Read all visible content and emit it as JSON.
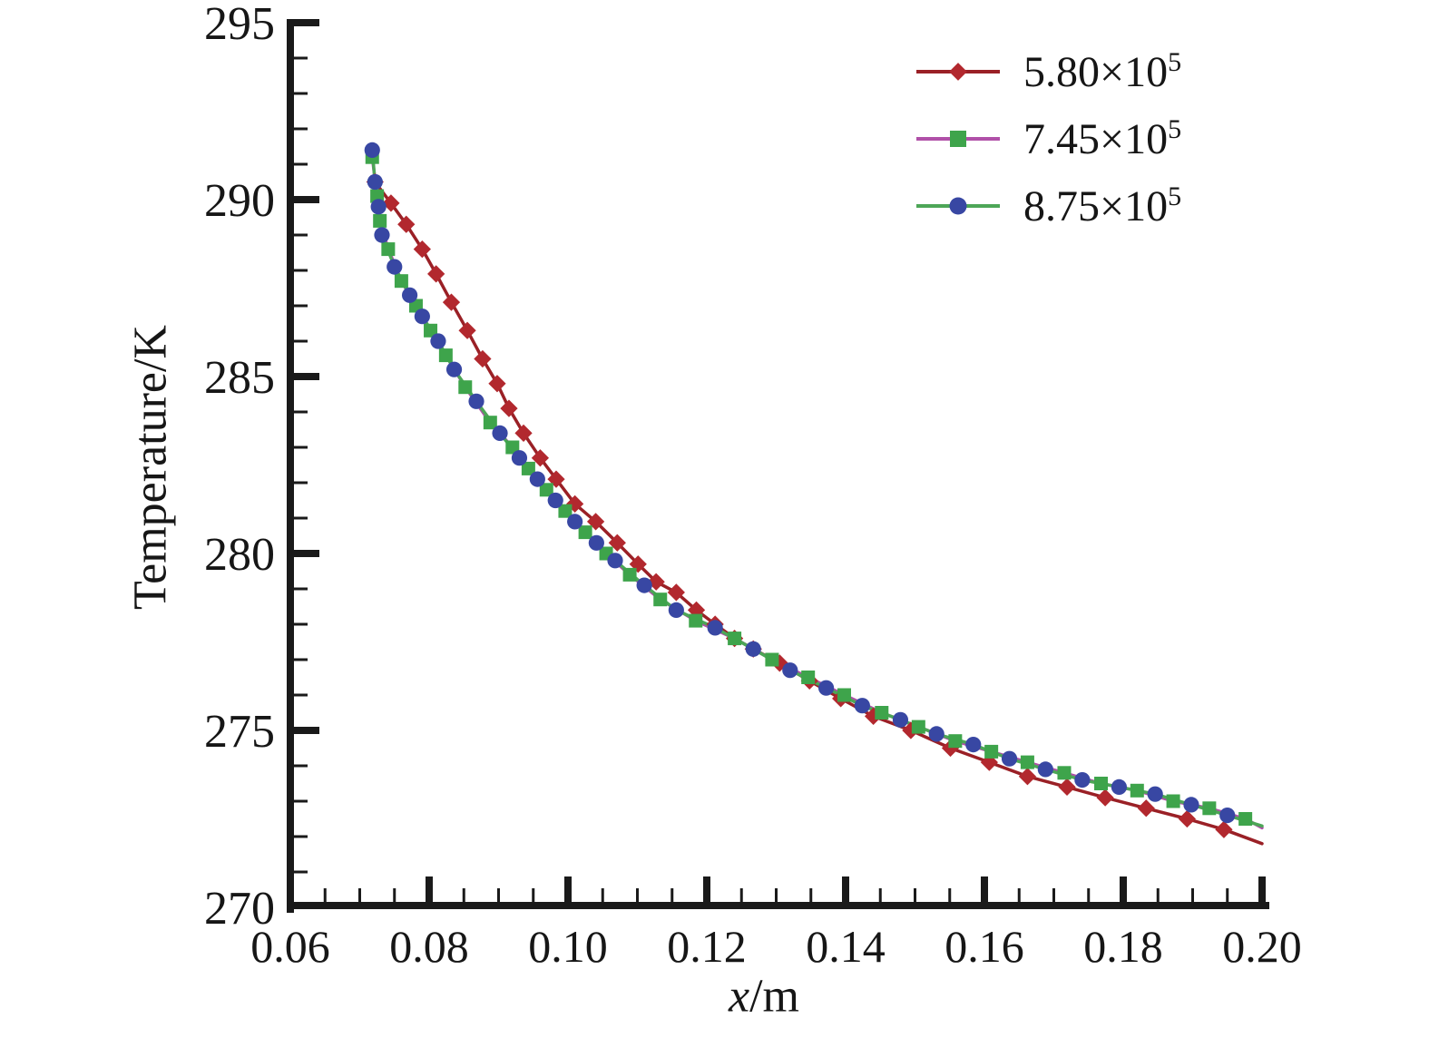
{
  "chart_data": {
    "type": "line",
    "title": "",
    "xlabel_italic": "x",
    "xlabel_rest": "/m",
    "ylabel": "Temperature/K",
    "xlim": [
      0.06,
      0.2
    ],
    "ylim": [
      270,
      295
    ],
    "x_major_ticks": [
      0.06,
      0.08,
      0.1,
      0.12,
      0.14,
      0.16,
      0.18,
      0.2
    ],
    "x_tick_labels": [
      "0.06",
      "0.08",
      "0.10",
      "0.12",
      "0.14",
      "0.16",
      "0.18",
      "0.20"
    ],
    "x_minor_step": 0.005,
    "y_major_ticks": [
      270,
      275,
      280,
      285,
      290,
      295
    ],
    "y_tick_labels": [
      "270",
      "275",
      "280",
      "285",
      "290",
      "295"
    ],
    "y_minor_step": 1,
    "grid": false,
    "legend_position": "top-right",
    "axis_color": "#1a1a1a",
    "text_color": "#161616",
    "series": [
      {
        "name": "5.80×10^5",
        "label_base": "5.80×10",
        "label_exp": "5",
        "marker": "diamond",
        "line_color": "#9a2026",
        "marker_color": "#b2282e",
        "points": [
          [
            0.0722,
            290.5
          ],
          [
            0.0745,
            289.9
          ],
          [
            0.0767,
            289.3
          ],
          [
            0.079,
            288.6
          ],
          [
            0.081,
            287.9
          ],
          [
            0.0832,
            287.1
          ],
          [
            0.0855,
            286.3
          ],
          [
            0.0877,
            285.5
          ],
          [
            0.0898,
            284.8
          ],
          [
            0.0915,
            284.1
          ],
          [
            0.0936,
            283.4
          ],
          [
            0.096,
            282.7
          ],
          [
            0.0983,
            282.1
          ],
          [
            0.101,
            281.4
          ],
          [
            0.104,
            280.9
          ],
          [
            0.1071,
            280.3
          ],
          [
            0.1101,
            279.7
          ],
          [
            0.1127,
            279.2
          ],
          [
            0.1156,
            278.9
          ],
          [
            0.1185,
            278.4
          ],
          [
            0.1212,
            278.0
          ],
          [
            0.124,
            277.6
          ],
          [
            0.1267,
            277.3
          ],
          [
            0.1305,
            276.9
          ],
          [
            0.1348,
            276.4
          ],
          [
            0.1393,
            275.9
          ],
          [
            0.144,
            275.4
          ],
          [
            0.1494,
            275.0
          ],
          [
            0.1551,
            274.5
          ],
          [
            0.1607,
            274.1
          ],
          [
            0.1662,
            273.7
          ],
          [
            0.1719,
            273.4
          ],
          [
            0.1774,
            273.1
          ],
          [
            0.1833,
            272.8
          ],
          [
            0.1892,
            272.5
          ],
          [
            0.1945,
            272.2
          ]
        ],
        "line_end": [
          0.2,
          271.8
        ]
      },
      {
        "name": "7.45×10^5",
        "label_base": "7.45×10",
        "label_exp": "5",
        "marker": "square",
        "line_color": "#b050a8",
        "marker_color": "#3ea44b",
        "points": [
          [
            0.0718,
            291.2
          ],
          [
            0.0725,
            290.1
          ],
          [
            0.0729,
            289.4
          ],
          [
            0.0741,
            288.6
          ],
          [
            0.076,
            287.7
          ],
          [
            0.0781,
            287.0
          ],
          [
            0.0802,
            286.3
          ],
          [
            0.0824,
            285.6
          ],
          [
            0.0852,
            284.7
          ],
          [
            0.0888,
            283.7
          ],
          [
            0.092,
            283.0
          ],
          [
            0.0943,
            282.4
          ],
          [
            0.0969,
            281.8
          ],
          [
            0.0996,
            281.2
          ],
          [
            0.1025,
            280.6
          ],
          [
            0.1055,
            280.0
          ],
          [
            0.1089,
            279.4
          ],
          [
            0.1133,
            278.7
          ],
          [
            0.1184,
            278.1
          ],
          [
            0.124,
            277.6
          ],
          [
            0.1294,
            277.0
          ],
          [
            0.1346,
            276.5
          ],
          [
            0.1398,
            276.0
          ],
          [
            0.1452,
            275.5
          ],
          [
            0.1505,
            275.1
          ],
          [
            0.1558,
            274.7
          ],
          [
            0.161,
            274.4
          ],
          [
            0.1662,
            274.1
          ],
          [
            0.1715,
            273.8
          ],
          [
            0.1768,
            273.5
          ],
          [
            0.182,
            273.3
          ],
          [
            0.1872,
            273.0
          ],
          [
            0.1924,
            272.8
          ],
          [
            0.1976,
            272.5
          ]
        ],
        "line_end": [
          0.2,
          272.25
        ]
      },
      {
        "name": "8.75×10^5",
        "label_base": "8.75×10",
        "label_exp": "5",
        "marker": "circle",
        "line_color": "#4da657",
        "marker_color": "#3847a3",
        "points": [
          [
            0.0718,
            291.4
          ],
          [
            0.0722,
            290.5
          ],
          [
            0.0727,
            289.8
          ],
          [
            0.0732,
            289.0
          ],
          [
            0.075,
            288.1
          ],
          [
            0.0772,
            287.3
          ],
          [
            0.079,
            286.7
          ],
          [
            0.0813,
            286.0
          ],
          [
            0.0836,
            285.2
          ],
          [
            0.0868,
            284.3
          ],
          [
            0.0902,
            283.4
          ],
          [
            0.093,
            282.7
          ],
          [
            0.0956,
            282.1
          ],
          [
            0.0982,
            281.5
          ],
          [
            0.101,
            280.9
          ],
          [
            0.1041,
            280.3
          ],
          [
            0.1068,
            279.8
          ],
          [
            0.111,
            279.1
          ],
          [
            0.1156,
            278.4
          ],
          [
            0.1212,
            277.9
          ],
          [
            0.1267,
            277.3
          ],
          [
            0.132,
            276.7
          ],
          [
            0.1372,
            276.2
          ],
          [
            0.1424,
            275.7
          ],
          [
            0.1479,
            275.3
          ],
          [
            0.1531,
            274.9
          ],
          [
            0.1584,
            274.6
          ],
          [
            0.1636,
            274.2
          ],
          [
            0.1688,
            273.9
          ],
          [
            0.1741,
            273.6
          ],
          [
            0.1794,
            273.4
          ],
          [
            0.1846,
            273.2
          ],
          [
            0.1898,
            272.9
          ],
          [
            0.195,
            272.6
          ]
        ],
        "line_end": [
          0.2,
          272.3
        ]
      }
    ]
  }
}
